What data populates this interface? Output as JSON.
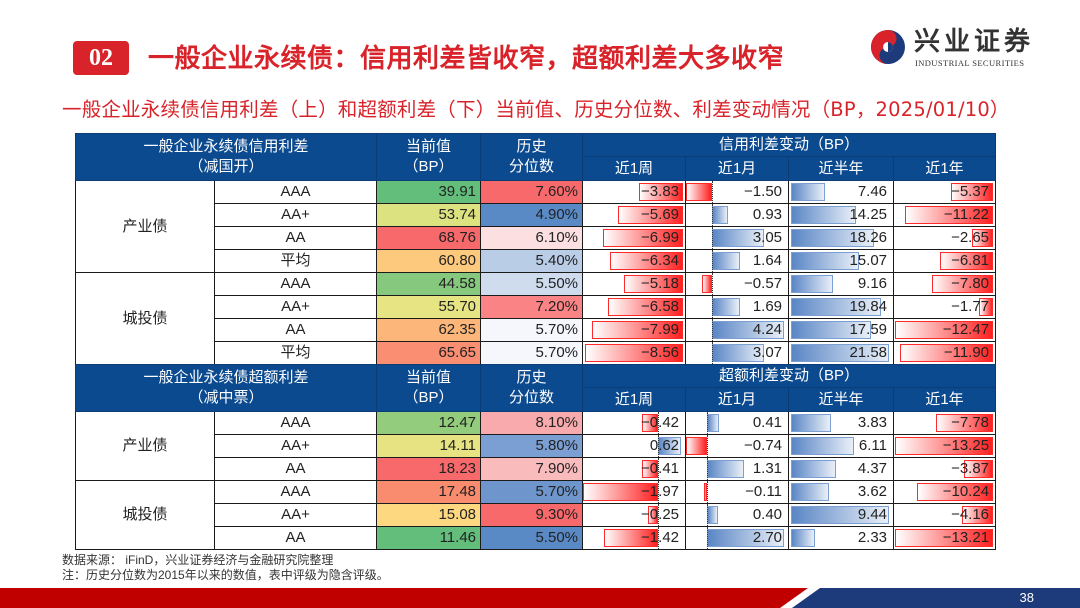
{
  "header": {
    "section_number": "02",
    "title": "一般企业永续债：信用利差皆收窄，超额利差大多收窄",
    "logo": {
      "icon": "industrial-securities-logo-icon",
      "name_cn": "兴业证券",
      "name_en": "INDUSTRIAL SECURITIES"
    }
  },
  "subtitle": "一般企业永续债信用利差（上）和超额利差（下）当前值、历史分位数、利差变动情况（BP，2025/01/10）",
  "colors": {
    "accent_red": "#d9232a",
    "table_header_blue": "#0b4a8f",
    "neg_bar_red": "#ff2020",
    "pos_bar_blue": "#5a86c5",
    "footer_red": "#c00000",
    "footer_blue": "#1d3a7a"
  },
  "credit_table": {
    "title_line1": "一般企业永续债信用利差",
    "title_line2": "（减国开）",
    "current_line1": "当前值",
    "current_line2": "（BP）",
    "pct_line1": "历史",
    "pct_line2": "分位数",
    "change_group": "信用利差变动（BP）",
    "periods": [
      "近1周",
      "近1月",
      "近半年",
      "近1年"
    ],
    "groups": [
      {
        "category": "产业债",
        "rows": [
          {
            "rating": "AAA",
            "current": "39.91",
            "current_color": "#63be7b",
            "pct": "7.60%",
            "pct_color": "#f8696b",
            "changes": [
              "-3.83",
              "-1.50",
              "7.46",
              "-5.37"
            ]
          },
          {
            "rating": "AA+",
            "current": "53.74",
            "current_color": "#dde281",
            "pct": "4.90%",
            "pct_color": "#5a8ac6",
            "changes": [
              "-5.69",
              "0.93",
              "14.25",
              "-11.22"
            ]
          },
          {
            "rating": "AA",
            "current": "68.76",
            "current_color": "#f8696b",
            "pct": "6.10%",
            "pct_color": "#fcdfe1",
            "changes": [
              "-6.99",
              "3.05",
              "18.26",
              "-2.65"
            ]
          },
          {
            "rating": "平均",
            "current": "60.80",
            "current_color": "#fdc97d",
            "pct": "5.40%",
            "pct_color": "#b9cde7",
            "changes": [
              "-6.34",
              "1.64",
              "15.07",
              "-6.81"
            ]
          }
        ]
      },
      {
        "category": "城投债",
        "rows": [
          {
            "rating": "AAA",
            "current": "44.58",
            "current_color": "#86c97e",
            "pct": "5.50%",
            "pct_color": "#cfdcee",
            "changes": [
              "-5.18",
              "-0.57",
              "9.16",
              "-7.80"
            ]
          },
          {
            "rating": "AA+",
            "current": "55.70",
            "current_color": "#e6e483",
            "pct": "7.20%",
            "pct_color": "#f98385",
            "changes": [
              "-6.58",
              "1.69",
              "19.84",
              "-1.77"
            ]
          },
          {
            "rating": "AA",
            "current": "62.35",
            "current_color": "#fcb67a",
            "pct": "5.70%",
            "pct_color": "#f6f7fc",
            "changes": [
              "-7.99",
              "4.24",
              "17.59",
              "-12.47"
            ]
          },
          {
            "rating": "平均",
            "current": "65.65",
            "current_color": "#fa8e72",
            "pct": "5.70%",
            "pct_color": "#f6f7fc",
            "changes": [
              "-8.56",
              "3.07",
              "21.58",
              "-11.90"
            ]
          }
        ]
      }
    ]
  },
  "excess_table": {
    "title_line1": "一般企业永续债超额利差",
    "title_line2": "（减中票）",
    "current_line1": "当前值",
    "current_line2": "（BP）",
    "pct_line1": "历史",
    "pct_line2": "分位数",
    "change_group": "超额利差变动（BP）",
    "periods": [
      "近1周",
      "近1月",
      "近半年",
      "近1年"
    ],
    "groups": [
      {
        "category": "产业债",
        "rows": [
          {
            "rating": "AAA",
            "current": "12.47",
            "current_color": "#94cc7d",
            "pct": "8.10%",
            "pct_color": "#f9aaac",
            "changes": [
              "-0.42",
              "0.41",
              "3.83",
              "-7.78"
            ]
          },
          {
            "rating": "AA+",
            "current": "14.11",
            "current_color": "#e7e383",
            "pct": "5.80%",
            "pct_color": "#7b9fd2",
            "changes": [
              "0.62",
              "-0.74",
              "6.11",
              "-13.25"
            ]
          },
          {
            "rating": "AA",
            "current": "18.23",
            "current_color": "#f8696b",
            "pct": "7.90%",
            "pct_color": "#fabbbd",
            "changes": [
              "-0.41",
              "1.31",
              "4.37",
              "-3.87"
            ]
          }
        ]
      },
      {
        "category": "城投债",
        "rows": [
          {
            "rating": "AAA",
            "current": "17.48",
            "current_color": "#f98b6f",
            "pct": "5.70%",
            "pct_color": "#6e96cd",
            "changes": [
              "-1.97",
              "-0.11",
              "3.62",
              "-10.24"
            ]
          },
          {
            "rating": "AA+",
            "current": "15.08",
            "current_color": "#fed880",
            "pct": "9.30%",
            "pct_color": "#f8696b",
            "changes": [
              "-0.25",
              "0.40",
              "9.44",
              "-4.16"
            ]
          },
          {
            "rating": "AA",
            "current": "11.46",
            "current_color": "#63be7b",
            "pct": "5.50%",
            "pct_color": "#5a8ac6",
            "changes": [
              "-1.42",
              "2.70",
              "2.33",
              "-13.21"
            ]
          }
        ]
      }
    ]
  },
  "footnotes": {
    "source": "数据来源： iFinD，兴业证券经济与金融研究院整理",
    "note": "注：历史分位数为2015年以来的数值，表中评级为隐含评级。"
  },
  "page_number": "38"
}
